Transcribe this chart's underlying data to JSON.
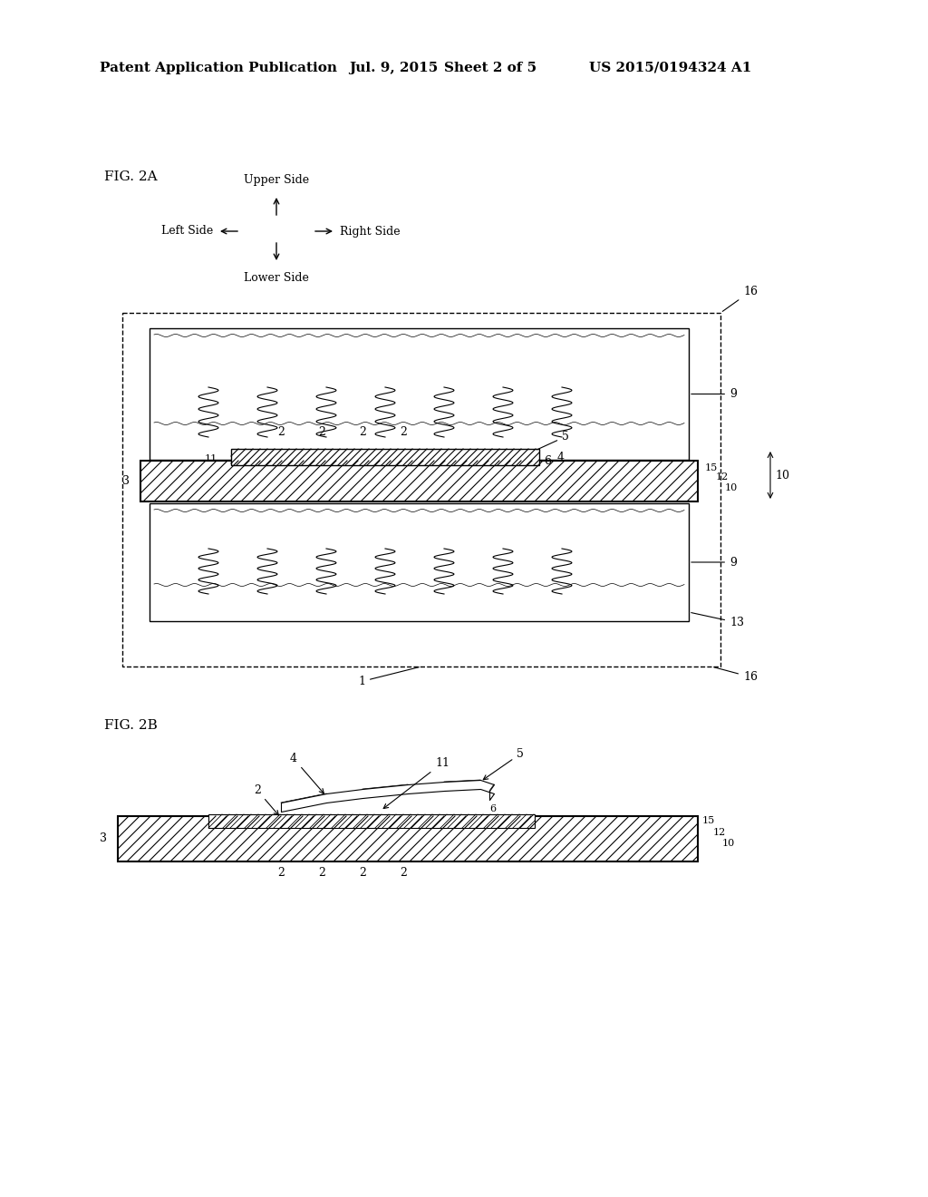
{
  "bg_color": "#ffffff",
  "header_text": "Patent Application Publication",
  "header_date": "Jul. 9, 2015",
  "header_sheet": "Sheet 2 of 5",
  "header_patent": "US 2015/0194324 A1",
  "fig2a_label": "FIG. 2A",
  "fig2b_label": "FIG. 2B",
  "direction_labels": {
    "upper": "Upper Side",
    "lower": "Lower Side",
    "left": "Left Side",
    "right": "Right Side"
  }
}
